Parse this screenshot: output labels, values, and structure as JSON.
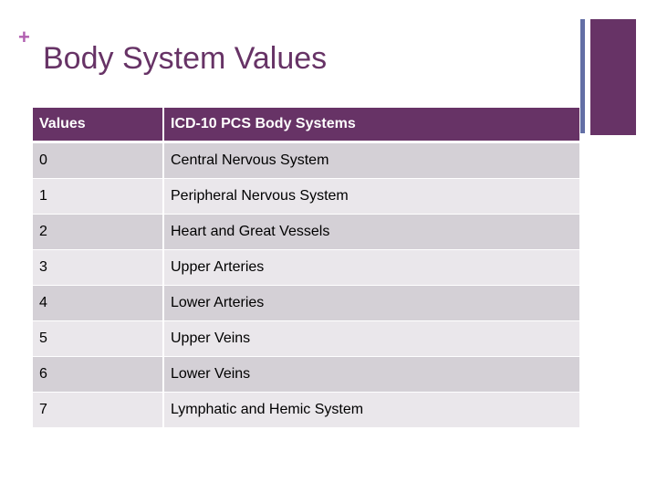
{
  "slide": {
    "plus_glyph": "+",
    "title": "Body System Values"
  },
  "colors": {
    "accent": "#673366",
    "accent_light": "#b15fb0",
    "stripe_blue": "#636fa6",
    "title_text": "#673366",
    "row_dark": "#d4d0d6",
    "row_light": "#eae7eb"
  },
  "table": {
    "headers": [
      "Values",
      "ICD-10 PCS Body Systems"
    ],
    "rows": [
      [
        "0",
        "Central Nervous System"
      ],
      [
        "1",
        "Peripheral Nervous System"
      ],
      [
        "2",
        "Heart and Great Vessels"
      ],
      [
        "3",
        "Upper Arteries"
      ],
      [
        "4",
        "Lower Arteries"
      ],
      [
        "5",
        "Upper Veins"
      ],
      [
        "6",
        "Lower Veins"
      ],
      [
        "7",
        "Lymphatic and Hemic System"
      ]
    ]
  }
}
